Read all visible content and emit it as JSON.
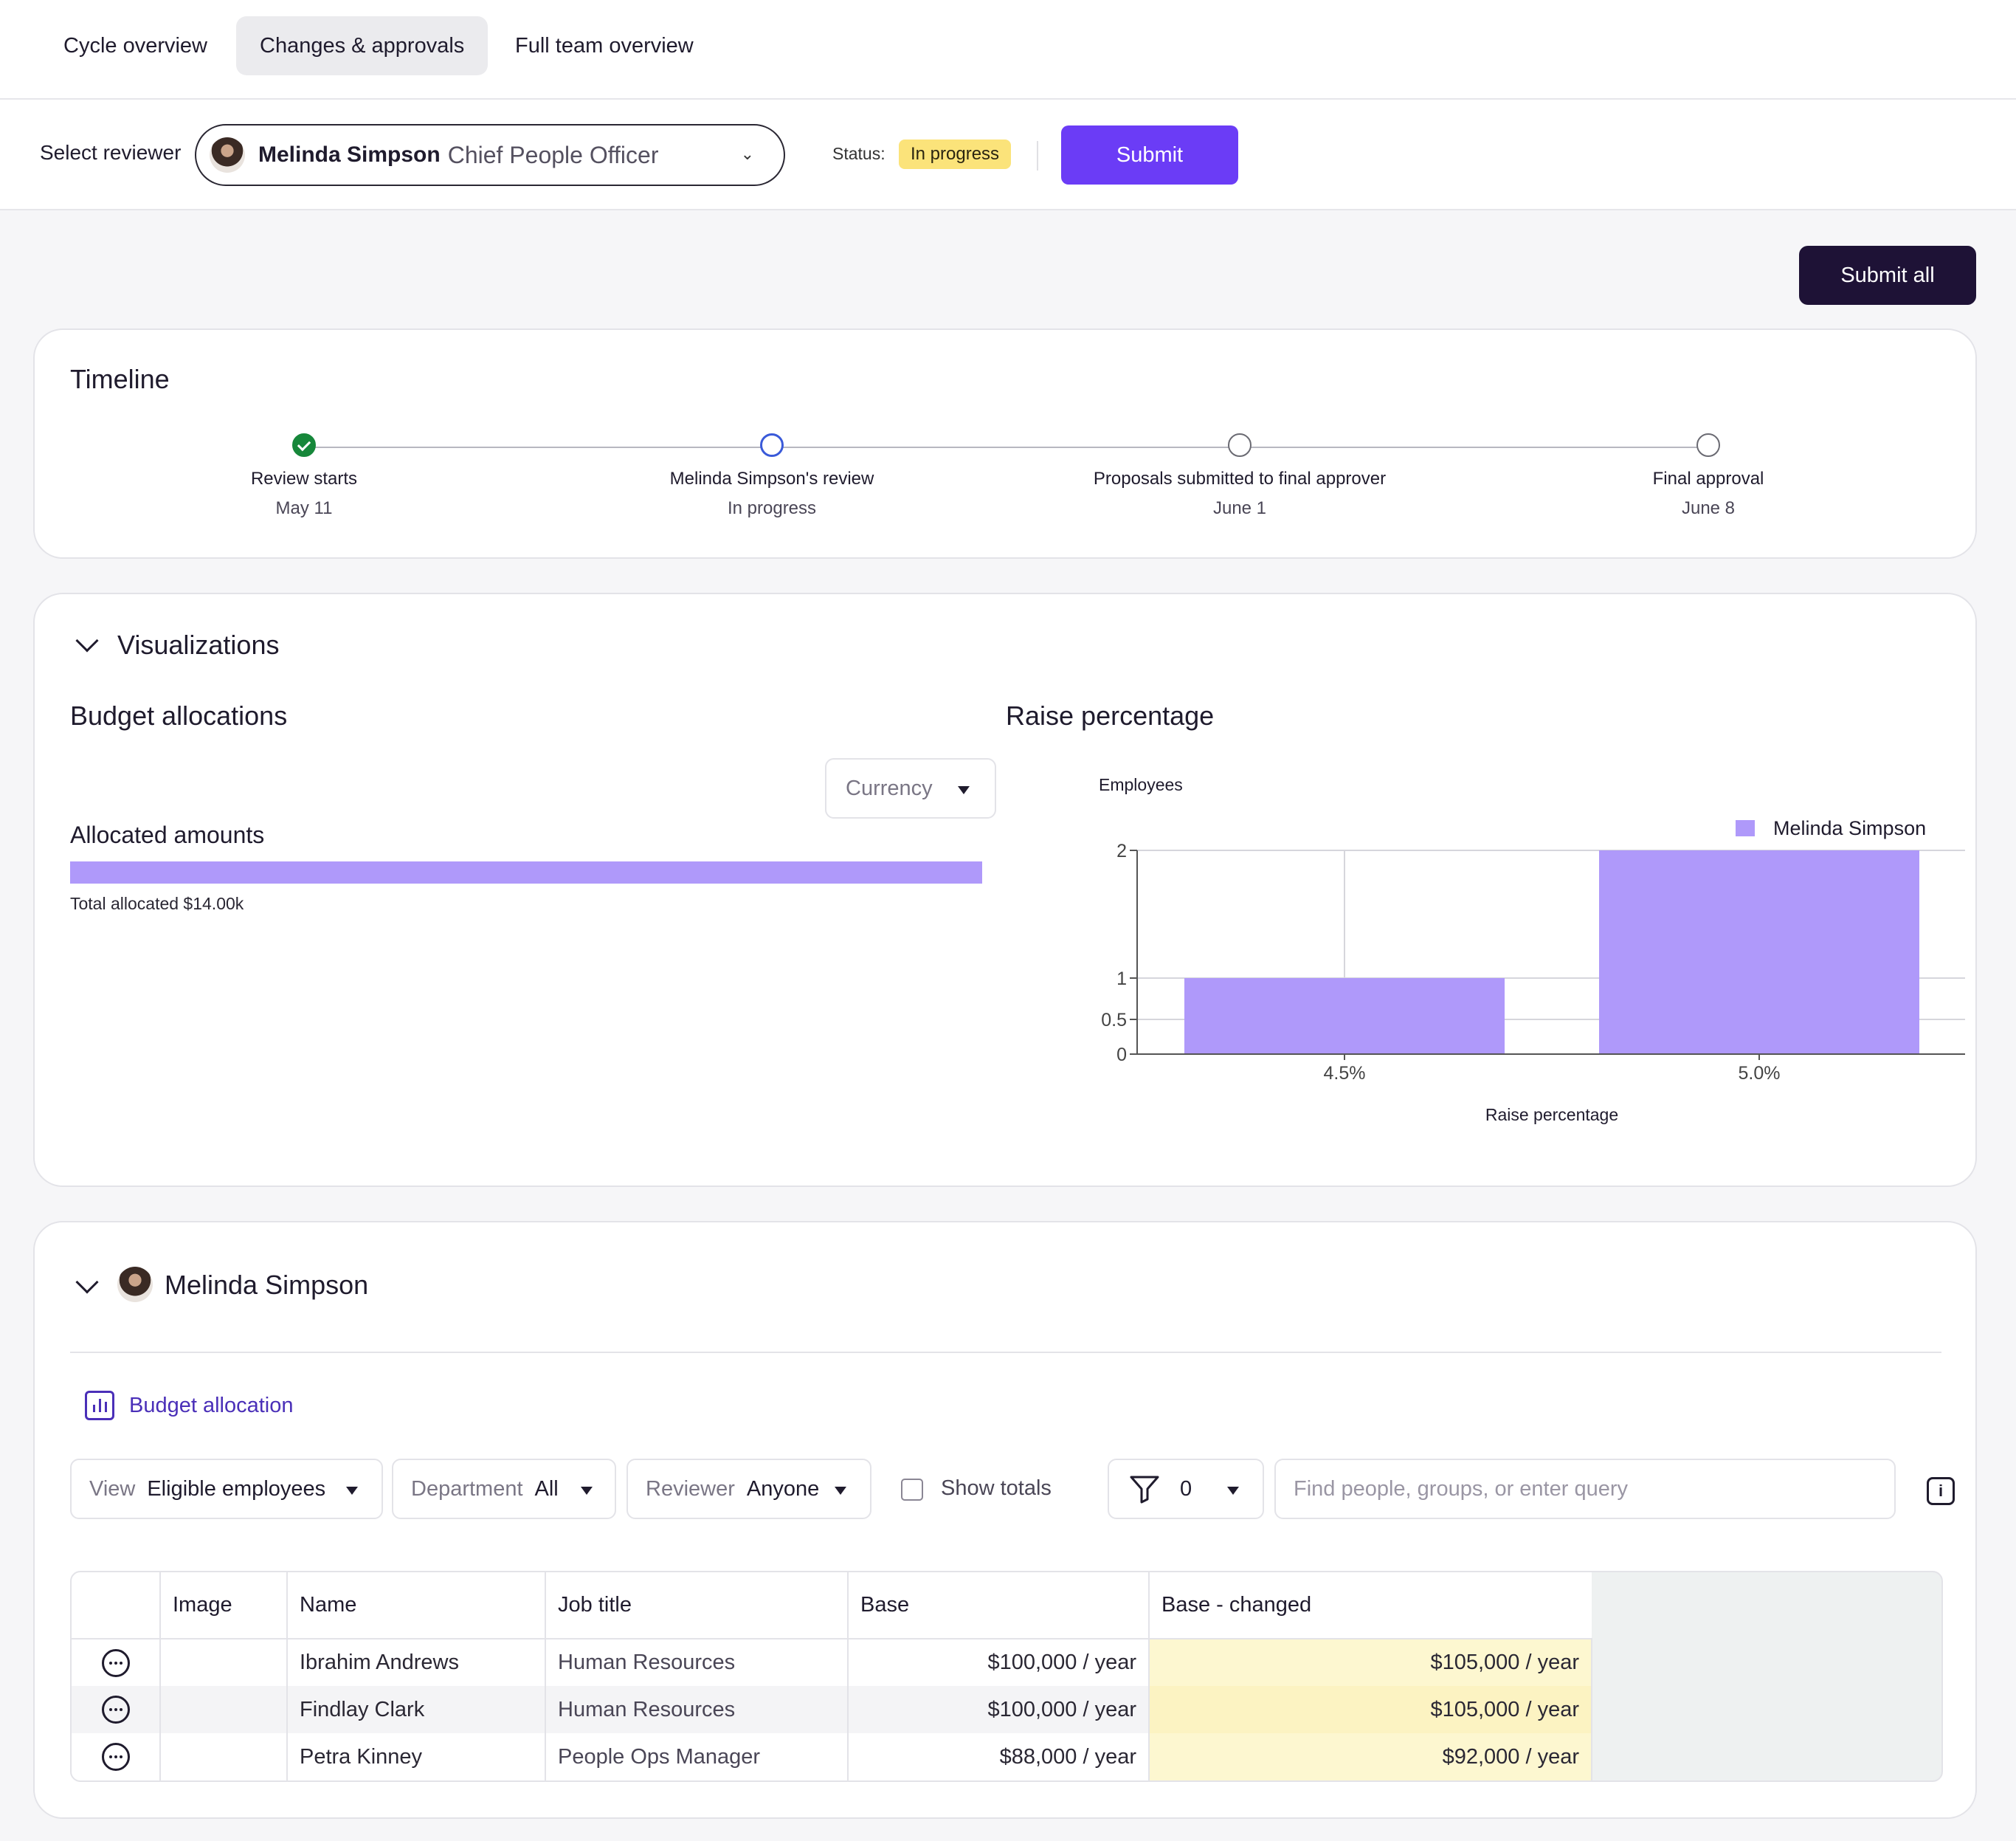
{
  "tabs": [
    {
      "label": "Cycle overview"
    },
    {
      "label": "Changes & approvals"
    },
    {
      "label": "Full team overview"
    }
  ],
  "reviewer_bar": {
    "label": "Select reviewer",
    "selected_name": "Melinda Simpson",
    "selected_role": "Chief People Officer",
    "status_label": "Status:",
    "status": "In progress",
    "submit_label": "Submit"
  },
  "submit_all_label": "Submit all",
  "timeline": {
    "title": "Timeline",
    "steps": [
      {
        "name": "Review starts",
        "sub": "May 11",
        "state": "done"
      },
      {
        "name": "Melinda Simpson's review",
        "sub": "In progress",
        "state": "current"
      },
      {
        "name": "Proposals submitted to final approver",
        "sub": "June 1",
        "state": "pending"
      },
      {
        "name": "Final approval",
        "sub": "June 8",
        "state": "pending"
      }
    ]
  },
  "visualizations": {
    "title": "Visualizations",
    "budget": {
      "title": "Budget allocations",
      "currency_select": "Currency",
      "allocated_label": "Allocated amounts",
      "total_label": "Total allocated $14.00k",
      "bar_fill": 1.0
    },
    "raise": {
      "title": "Raise percentage"
    }
  },
  "chart_data": {
    "type": "bar",
    "categories": [
      "4.5%",
      "5.0%"
    ],
    "series": [
      {
        "name": "Melinda Simpson",
        "values": [
          1,
          2
        ],
        "color": "#af99fa"
      }
    ],
    "xlabel": "Raise percentage",
    "ylabel": "Employees",
    "yticks": [
      0,
      0.5,
      1,
      2
    ],
    "yticks_labels": [
      "0",
      "0.5",
      "1",
      "2"
    ],
    "ylim": [
      0,
      2
    ],
    "grid": true,
    "legend": "top-right"
  },
  "reviewer_section": {
    "name": "Melinda Simpson",
    "budget_link": "Budget allocation",
    "filters": {
      "view_label": "View",
      "view_value": "Eligible employees",
      "dept_label": "Department",
      "dept_value": "All",
      "reviewer_label": "Reviewer",
      "reviewer_value": "Anyone",
      "show_totals": "Show totals",
      "filter_count": "0",
      "search_placeholder": "Find people, groups, or enter query",
      "info": "i"
    },
    "table": {
      "columns": [
        "Image",
        "Name",
        "Job title",
        "Base",
        "Base - changed"
      ],
      "rows": [
        {
          "name": "Ibrahim Andrews",
          "job": "Human Resources",
          "base": "$100,000 / year",
          "changed": "$105,000 / year"
        },
        {
          "name": "Findlay Clark",
          "job": "Human Resources",
          "base": "$100,000 / year",
          "changed": "$105,000 / year"
        },
        {
          "name": "Petra Kinney",
          "job": "People Ops Manager",
          "base": "$88,000 / year",
          "changed": "$92,000 / year"
        }
      ]
    }
  }
}
